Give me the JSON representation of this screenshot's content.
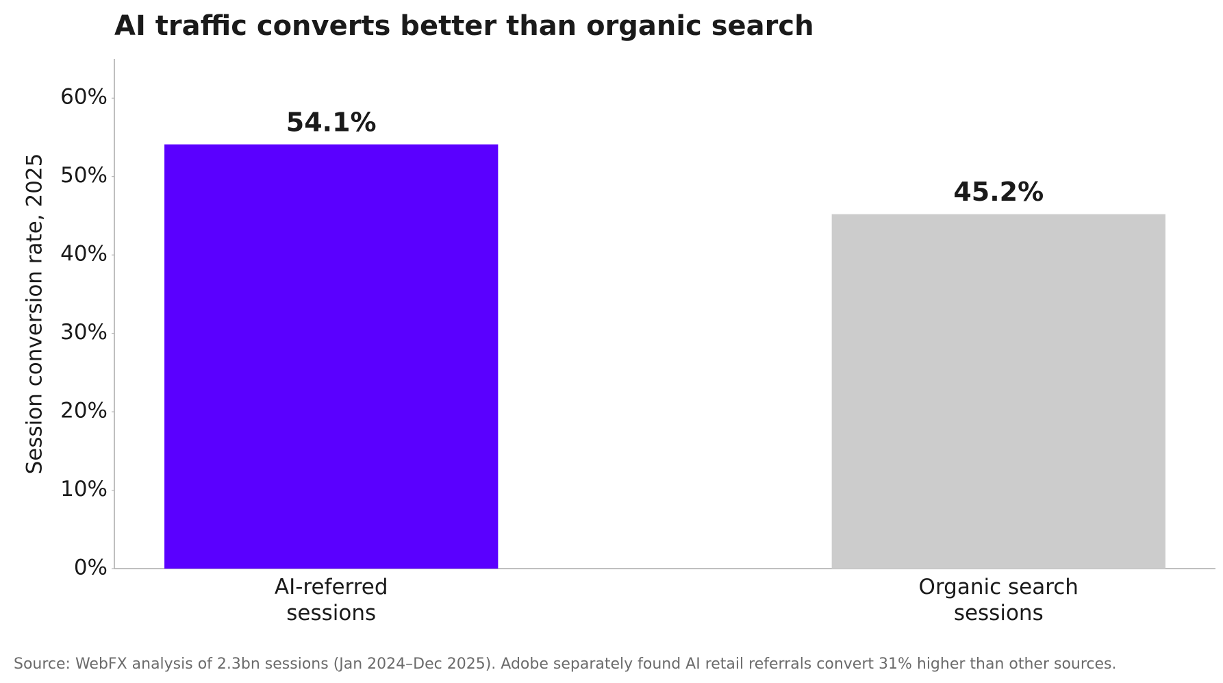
{
  "chart_data": {
    "type": "bar",
    "title": "AI traffic converts better than organic search",
    "y_label": "Session conversion rate, 2025",
    "categories": [
      "AI-referred\nsessions",
      "Organic search\nsessions"
    ],
    "values": [
      54.1,
      45.2
    ],
    "value_labels": [
      "54.1%",
      "45.2%"
    ],
    "colors": [
      "#5a00ff",
      "#cccccc"
    ],
    "ylim": [
      0,
      65
    ],
    "yticks": [
      {
        "value": 0,
        "label": "0%"
      },
      {
        "value": 10,
        "label": "10%"
      },
      {
        "value": 20,
        "label": "20%"
      },
      {
        "value": 30,
        "label": "30%"
      },
      {
        "value": 40,
        "label": "40%"
      },
      {
        "value": 50,
        "label": "50%"
      },
      {
        "value": 60,
        "label": "60%"
      }
    ],
    "grid": false,
    "source": "Source: WebFX analysis of 2.3bn sessions (Jan 2024–Dec 2025). Adobe separately found AI retail referrals convert 31% higher than other sources."
  }
}
